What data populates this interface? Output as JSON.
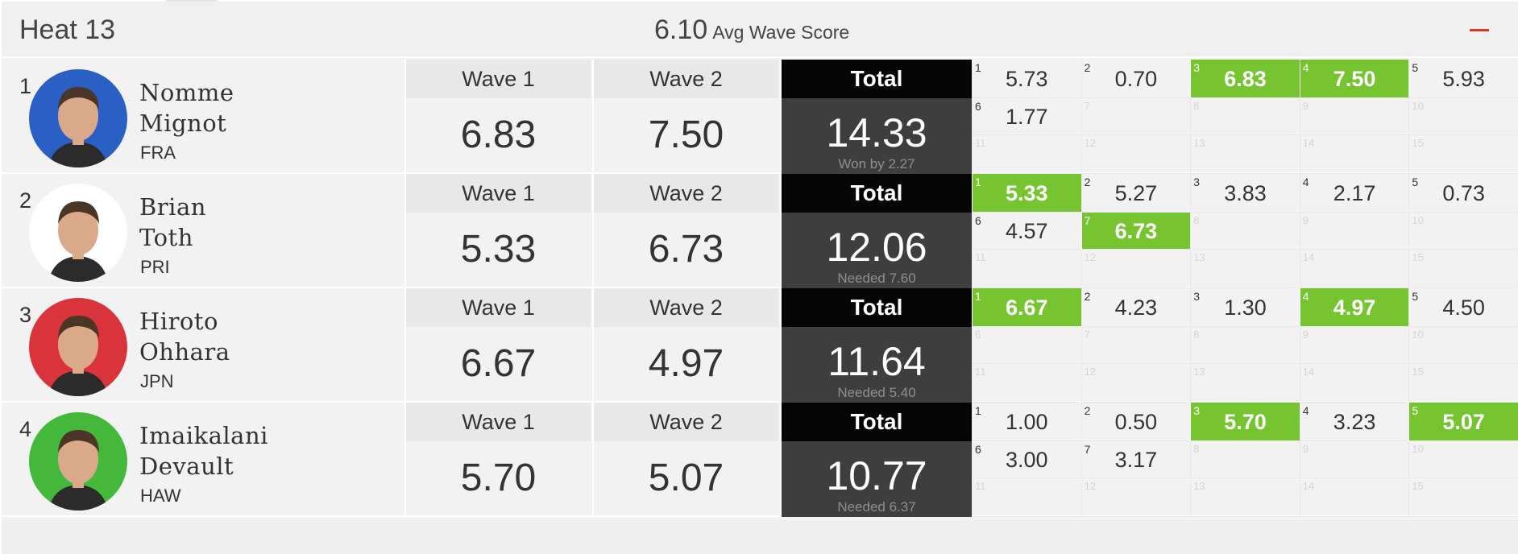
{
  "heat": {
    "title": "Heat 13",
    "avg_score": "6.10",
    "avg_label": "Avg Wave Score"
  },
  "colors": {
    "highlight": "#76c530",
    "total_header": "#050505",
    "total_body": "#3e3e3e",
    "collapse": "#e0302a"
  },
  "surfers": [
    {
      "rank": "1",
      "first": "Nomme",
      "last": "Mignot",
      "country": "FRA",
      "avatar_color": "#2a5fc4",
      "wave1_label": "Wave 1",
      "wave1": "6.83",
      "wave2_label": "Wave 2",
      "wave2": "7.50",
      "total_label": "Total",
      "total": "14.33",
      "note": "Won by 2.27",
      "waves": [
        {
          "n": "1",
          "v": "5.73",
          "hl": false
        },
        {
          "n": "2",
          "v": "0.70",
          "hl": false
        },
        {
          "n": "3",
          "v": "6.83",
          "hl": true
        },
        {
          "n": "4",
          "v": "7.50",
          "hl": true
        },
        {
          "n": "5",
          "v": "5.93",
          "hl": false
        },
        {
          "n": "6",
          "v": "1.77",
          "hl": false
        },
        {
          "n": "7",
          "v": "",
          "hl": false
        },
        {
          "n": "8",
          "v": "",
          "hl": false
        },
        {
          "n": "9",
          "v": "",
          "hl": false
        },
        {
          "n": "10",
          "v": "",
          "hl": false
        },
        {
          "n": "11",
          "v": "",
          "hl": false
        },
        {
          "n": "12",
          "v": "",
          "hl": false
        },
        {
          "n": "13",
          "v": "",
          "hl": false
        },
        {
          "n": "14",
          "v": "",
          "hl": false
        },
        {
          "n": "15",
          "v": "",
          "hl": false
        }
      ]
    },
    {
      "rank": "2",
      "first": "Brian",
      "last": "Toth",
      "country": "PRI",
      "avatar_color": "#ffffff",
      "wave1_label": "Wave 1",
      "wave1": "5.33",
      "wave2_label": "Wave 2",
      "wave2": "6.73",
      "total_label": "Total",
      "total": "12.06",
      "note": "Needed 7.60",
      "waves": [
        {
          "n": "1",
          "v": "5.33",
          "hl": true
        },
        {
          "n": "2",
          "v": "5.27",
          "hl": false
        },
        {
          "n": "3",
          "v": "3.83",
          "hl": false
        },
        {
          "n": "4",
          "v": "2.17",
          "hl": false
        },
        {
          "n": "5",
          "v": "0.73",
          "hl": false
        },
        {
          "n": "6",
          "v": "4.57",
          "hl": false
        },
        {
          "n": "7",
          "v": "6.73",
          "hl": true
        },
        {
          "n": "8",
          "v": "",
          "hl": false
        },
        {
          "n": "9",
          "v": "",
          "hl": false
        },
        {
          "n": "10",
          "v": "",
          "hl": false
        },
        {
          "n": "11",
          "v": "",
          "hl": false
        },
        {
          "n": "12",
          "v": "",
          "hl": false
        },
        {
          "n": "13",
          "v": "",
          "hl": false
        },
        {
          "n": "14",
          "v": "",
          "hl": false
        },
        {
          "n": "15",
          "v": "",
          "hl": false
        }
      ]
    },
    {
      "rank": "3",
      "first": "Hiroto",
      "last": "Ohhara",
      "country": "JPN",
      "avatar_color": "#d9333b",
      "wave1_label": "Wave 1",
      "wave1": "6.67",
      "wave2_label": "Wave 2",
      "wave2": "4.97",
      "total_label": "Total",
      "total": "11.64",
      "note": "Needed 5.40",
      "waves": [
        {
          "n": "1",
          "v": "6.67",
          "hl": true
        },
        {
          "n": "2",
          "v": "4.23",
          "hl": false
        },
        {
          "n": "3",
          "v": "1.30",
          "hl": false
        },
        {
          "n": "4",
          "v": "4.97",
          "hl": true
        },
        {
          "n": "5",
          "v": "4.50",
          "hl": false
        },
        {
          "n": "6",
          "v": "",
          "hl": false
        },
        {
          "n": "7",
          "v": "",
          "hl": false
        },
        {
          "n": "8",
          "v": "",
          "hl": false
        },
        {
          "n": "9",
          "v": "",
          "hl": false
        },
        {
          "n": "10",
          "v": "",
          "hl": false
        },
        {
          "n": "11",
          "v": "",
          "hl": false
        },
        {
          "n": "12",
          "v": "",
          "hl": false
        },
        {
          "n": "13",
          "v": "",
          "hl": false
        },
        {
          "n": "14",
          "v": "",
          "hl": false
        },
        {
          "n": "15",
          "v": "",
          "hl": false
        }
      ]
    },
    {
      "rank": "4",
      "first": "Imaikalani",
      "last": "Devault",
      "country": "HAW",
      "avatar_color": "#43b83a",
      "wave1_label": "Wave 1",
      "wave1": "5.70",
      "wave2_label": "Wave 2",
      "wave2": "5.07",
      "total_label": "Total",
      "total": "10.77",
      "note": "Needed 6.37",
      "waves": [
        {
          "n": "1",
          "v": "1.00",
          "hl": false
        },
        {
          "n": "2",
          "v": "0.50",
          "hl": false
        },
        {
          "n": "3",
          "v": "5.70",
          "hl": true
        },
        {
          "n": "4",
          "v": "3.23",
          "hl": false
        },
        {
          "n": "5",
          "v": "5.07",
          "hl": true
        },
        {
          "n": "6",
          "v": "3.00",
          "hl": false
        },
        {
          "n": "7",
          "v": "3.17",
          "hl": false
        },
        {
          "n": "8",
          "v": "",
          "hl": false
        },
        {
          "n": "9",
          "v": "",
          "hl": false
        },
        {
          "n": "10",
          "v": "",
          "hl": false
        },
        {
          "n": "11",
          "v": "",
          "hl": false
        },
        {
          "n": "12",
          "v": "",
          "hl": false
        },
        {
          "n": "13",
          "v": "",
          "hl": false
        },
        {
          "n": "14",
          "v": "",
          "hl": false
        },
        {
          "n": "15",
          "v": "",
          "hl": false
        }
      ]
    }
  ]
}
